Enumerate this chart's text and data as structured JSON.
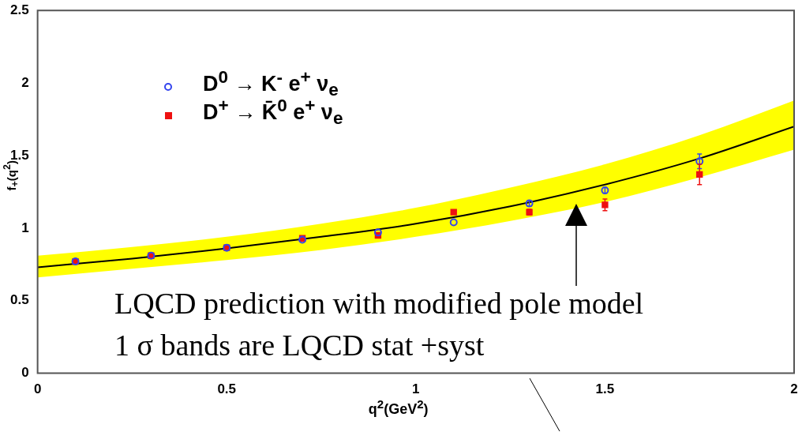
{
  "chart_data": {
    "type": "scatter",
    "xlabel": "q$^{2}$(GeV$^{2}$)",
    "ylabel": "f$_{+}$(q$^{2}$)",
    "xlim": [
      0,
      2
    ],
    "xticks": [
      0,
      0.5,
      1,
      1.5,
      2
    ],
    "ylim": [
      0,
      2.5
    ],
    "yticks": [
      0,
      0.5,
      1,
      1.5,
      2,
      2.5
    ],
    "grid": false,
    "legend": "top left",
    "series": [
      {
        "name": "D$^{0}$ → K$^{-}$ e$^{+}$ ν$_{e}$",
        "marker": "circle",
        "color": "#3344ee",
        "x": [
          0.1,
          0.3,
          0.5,
          0.7,
          0.9,
          1.1,
          1.3,
          1.5,
          1.75
        ],
        "values": [
          0.77,
          0.81,
          0.865,
          0.92,
          0.97,
          1.04,
          1.17,
          1.26,
          1.46
        ],
        "errors": [
          null,
          null,
          null,
          null,
          null,
          null,
          0.02,
          0.02,
          0.05
        ]
      },
      {
        "name": "D$^{+}$ → K̄$^{0}$ e$^{+}$ ν$_{e}$",
        "marker": "square",
        "color": "#ee1111",
        "x": [
          0.1,
          0.3,
          0.5,
          0.7,
          0.9,
          1.1,
          1.3,
          1.5,
          1.75
        ],
        "values": [
          0.77,
          0.81,
          0.865,
          0.93,
          0.95,
          1.11,
          1.11,
          1.16,
          1.37
        ],
        "errors": [
          null,
          null,
          null,
          null,
          null,
          null,
          0.02,
          0.04,
          0.07
        ]
      },
      {
        "type": "line",
        "marker": "none",
        "color": "#000000",
        "x": [
          0,
          0.25,
          0.5,
          0.75,
          1,
          1.25,
          1.5,
          1.75,
          2
        ],
        "values": [
          0.73,
          0.79,
          0.86,
          0.94,
          1.03,
          1.15,
          1.3,
          1.48,
          1.7
        ],
        "lower": [
          0.66,
          0.72,
          0.78,
          0.85,
          0.94,
          1.05,
          1.18,
          1.35,
          1.54
        ],
        "upper": [
          0.81,
          0.87,
          0.94,
          1.03,
          1.14,
          1.28,
          1.44,
          1.64,
          1.88
        ]
      }
    ],
    "annotations": [
      "LQCD prediction with modified pole model",
      "1 σ bands are LQCD stat +syst"
    ]
  }
}
